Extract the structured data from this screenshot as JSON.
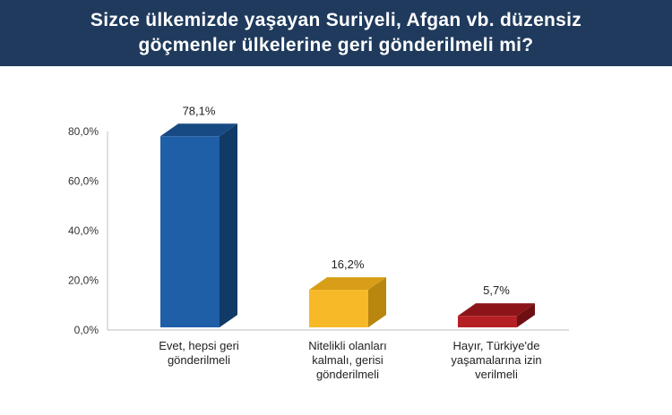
{
  "header": {
    "title_line1": "Sizce ülkemizde yaşayan Suriyeli, Afgan vb. düzensiz",
    "title_line2": "göçmenler ülkelerine geri gönderilmeli mi?"
  },
  "chart_data": {
    "type": "bar",
    "categories": [
      [
        "Evet, hepsi geri",
        "gönderilmeli"
      ],
      [
        "Nitelikli olanları",
        "kalmalı, gerisi",
        "gönderilmeli"
      ],
      [
        "Hayır, Türkiye'de",
        "yaşamalarına izin",
        "verilmeli"
      ]
    ],
    "values": [
      78.1,
      16.2,
      5.7
    ],
    "value_labels": [
      "78,1%",
      "16,2%",
      "5,7%"
    ],
    "ylim": [
      0,
      80
    ],
    "yticks": [
      "0,0%",
      "20,0%",
      "40,0%",
      "60,0%",
      "80,0%"
    ],
    "ytick_values": [
      0,
      20,
      40,
      60,
      80
    ],
    "grid": false,
    "colors": [
      {
        "front": "#1f5fa8",
        "side": "#123a66",
        "top": "#174a82"
      },
      {
        "front": "#f7b928",
        "side": "#b9860f",
        "top": "#d89e18"
      },
      {
        "front": "#b52025",
        "side": "#6e1013",
        "top": "#8c1519"
      }
    ]
  }
}
